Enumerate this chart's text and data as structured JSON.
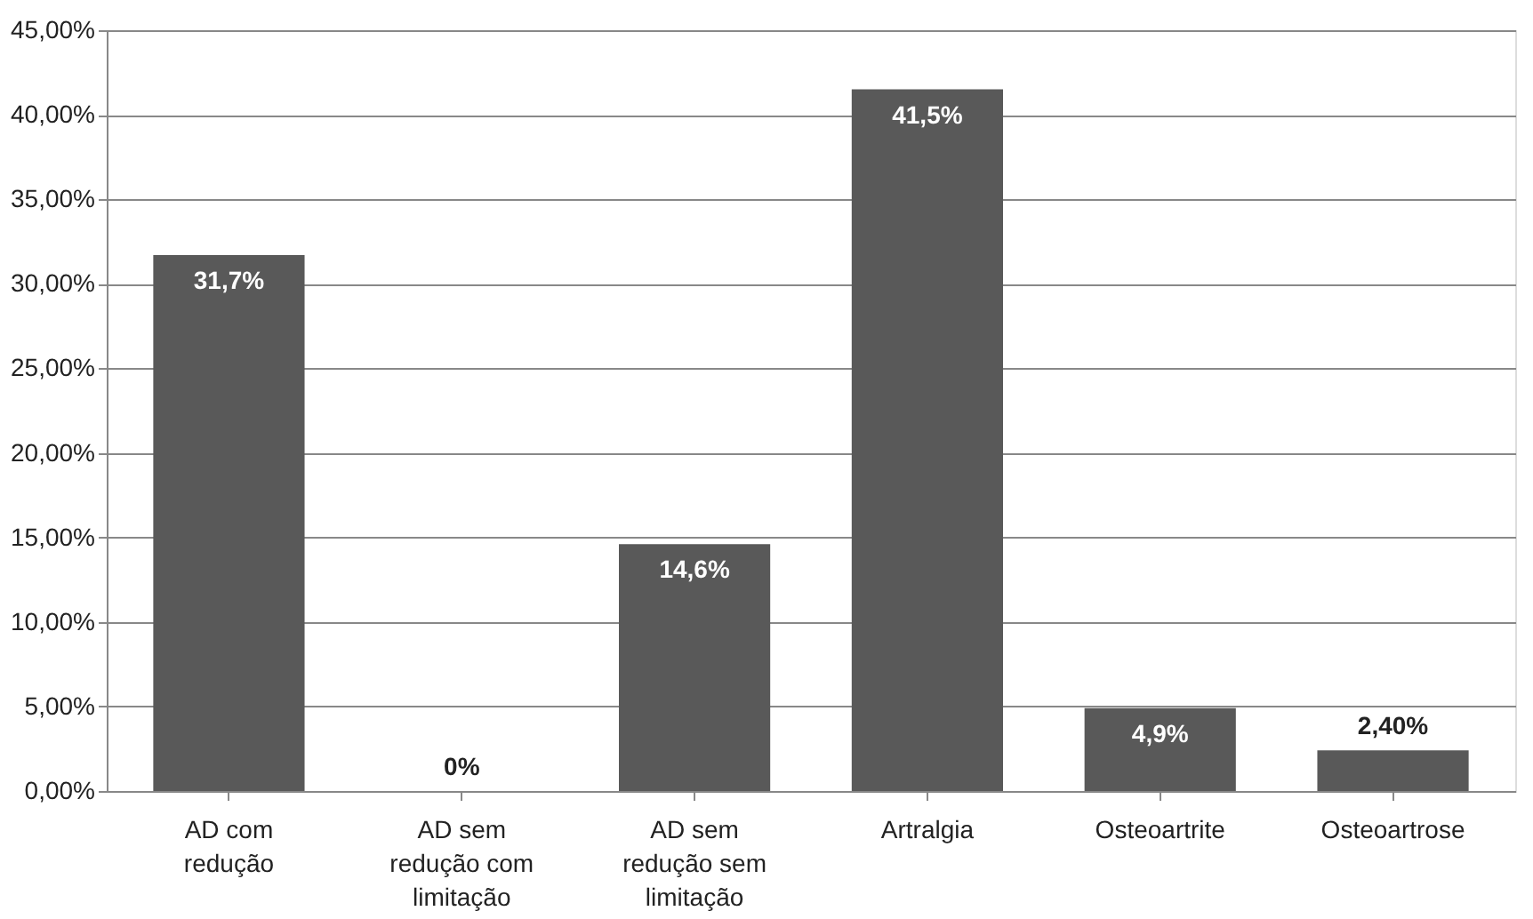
{
  "chart_data": {
    "type": "bar",
    "categories": [
      "AD com redução",
      "AD sem redução com limitação",
      "AD sem redução sem limitação",
      "Artralgia",
      "Osteoartrite",
      "Osteoartrose"
    ],
    "values": [
      31.7,
      0,
      14.6,
      41.5,
      4.9,
      2.4
    ],
    "value_labels": [
      "31,7%",
      "0%",
      "14,6%",
      "41,5%",
      "4,9%",
      "2,40%"
    ],
    "color": "#595959",
    "ylim": [
      0,
      45
    ],
    "yticks": [
      {
        "value": 0,
        "label": "0,00%"
      },
      {
        "value": 5,
        "label": "5,00%"
      },
      {
        "value": 10,
        "label": "10,00%"
      },
      {
        "value": 15,
        "label": "15,00%"
      },
      {
        "value": 20,
        "label": "20,00%"
      },
      {
        "value": 25,
        "label": "25,00%"
      },
      {
        "value": 30,
        "label": "30,00%"
      },
      {
        "value": 35,
        "label": "35,00%"
      },
      {
        "value": 40,
        "label": "40,00%"
      },
      {
        "value": 45,
        "label": "45,00%"
      }
    ],
    "grid": "y"
  }
}
